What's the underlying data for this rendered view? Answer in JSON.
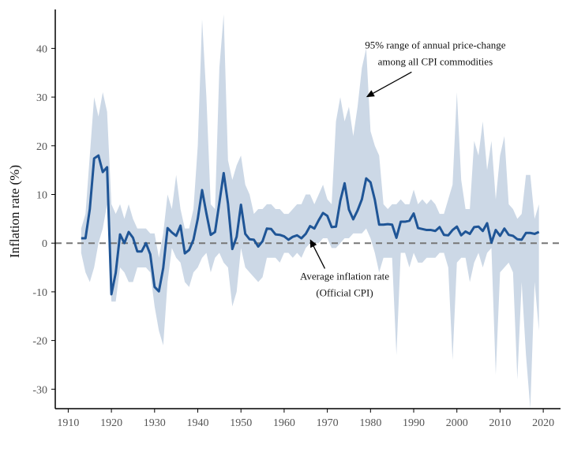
{
  "chart_data": {
    "type": "area",
    "ylabel": "Inflation rate (%)",
    "xlabel": "",
    "xlim": [
      1907,
      2024
    ],
    "ylim": [
      -34,
      48
    ],
    "xticks": [
      1910,
      1920,
      1930,
      1940,
      1950,
      1960,
      1970,
      1980,
      1990,
      2000,
      2010,
      2020
    ],
    "yticks": [
      -30,
      -20,
      -10,
      0,
      10,
      20,
      30,
      40
    ],
    "reference_line": {
      "y": 0,
      "style": "dashed"
    },
    "colors": {
      "line": "#1f5596",
      "band": "#ccd8e6",
      "zero": "#777777",
      "axis": "#000000"
    },
    "annotations": [
      {
        "lines": [
          "95% range of annual price-change",
          "among all CPI commodities"
        ],
        "target": {
          "x": 1979,
          "y": 30
        },
        "text_anchor": {
          "x": 1995,
          "y": 40
        }
      },
      {
        "lines": [
          "Average inflation rate",
          "(Official CPI)"
        ],
        "target": {
          "x": 1966,
          "y": 0.8
        },
        "text_anchor": {
          "x": 1974,
          "y": -7.5
        }
      }
    ],
    "series": [
      {
        "name": "Average inflation rate (Official CPI)",
        "x": [
          1913,
          1914,
          1915,
          1916,
          1917,
          1918,
          1919,
          1920,
          1921,
          1922,
          1923,
          1924,
          1925,
          1926,
          1927,
          1928,
          1929,
          1930,
          1931,
          1932,
          1933,
          1934,
          1935,
          1936,
          1937,
          1938,
          1939,
          1940,
          1941,
          1942,
          1943,
          1944,
          1945,
          1946,
          1947,
          1948,
          1949,
          1950,
          1951,
          1952,
          1953,
          1954,
          1955,
          1956,
          1957,
          1958,
          1959,
          1960,
          1961,
          1962,
          1963,
          1964,
          1965,
          1966,
          1967,
          1968,
          1969,
          1970,
          1971,
          1972,
          1973,
          1974,
          1975,
          1976,
          1977,
          1978,
          1979,
          1980,
          1981,
          1982,
          1983,
          1984,
          1985,
          1986,
          1987,
          1988,
          1989,
          1990,
          1991,
          1992,
          1993,
          1994,
          1995,
          1996,
          1997,
          1998,
          1999,
          2000,
          2001,
          2002,
          2003,
          2004,
          2005,
          2006,
          2007,
          2008,
          2009,
          2010,
          2011,
          2012,
          2013,
          2014,
          2015,
          2016,
          2017,
          2018,
          2019
        ],
        "y": [
          1.0,
          1.0,
          7.0,
          17.4,
          18.0,
          14.6,
          15.6,
          -10.5,
          -6.1,
          1.8,
          0.0,
          2.3,
          1.1,
          -1.7,
          -1.7,
          0.0,
          -2.3,
          -9.0,
          -9.9,
          -5.1,
          3.1,
          2.2,
          1.5,
          3.6,
          -2.1,
          -1.4,
          0.7,
          5.0,
          10.9,
          6.1,
          1.7,
          2.3,
          8.3,
          14.4,
          8.1,
          -1.2,
          1.3,
          7.9,
          1.9,
          0.8,
          0.7,
          -0.7,
          0.4,
          3.0,
          2.9,
          1.8,
          1.7,
          1.4,
          0.7,
          1.3,
          1.6,
          1.0,
          1.9,
          3.5,
          3.0,
          4.7,
          6.2,
          5.6,
          3.3,
          3.4,
          8.7,
          12.3,
          6.9,
          4.9,
          6.7,
          9.0,
          13.3,
          12.5,
          8.9,
          3.8,
          3.8,
          3.9,
          3.8,
          1.1,
          4.4,
          4.4,
          4.6,
          6.1,
          3.1,
          2.9,
          2.7,
          2.7,
          2.5,
          3.3,
          1.7,
          1.6,
          2.7,
          3.4,
          1.6,
          2.4,
          1.9,
          3.3,
          3.4,
          2.5,
          4.1,
          0.1,
          2.7,
          1.5,
          3.0,
          1.7,
          1.5,
          0.8,
          0.7,
          2.1,
          2.1,
          1.9,
          2.3
        ],
        "color": "#1f5596"
      }
    ],
    "band": {
      "name": "95% range of annual price-change among all CPI commodities",
      "x": [
        1913,
        1914,
        1915,
        1916,
        1917,
        1918,
        1919,
        1920,
        1921,
        1922,
        1923,
        1924,
        1925,
        1926,
        1927,
        1928,
        1929,
        1930,
        1931,
        1932,
        1933,
        1934,
        1935,
        1936,
        1937,
        1938,
        1939,
        1940,
        1941,
        1942,
        1943,
        1944,
        1945,
        1946,
        1947,
        1948,
        1949,
        1950,
        1951,
        1952,
        1953,
        1954,
        1955,
        1956,
        1957,
        1958,
        1959,
        1960,
        1961,
        1962,
        1963,
        1964,
        1965,
        1966,
        1967,
        1968,
        1969,
        1970,
        1971,
        1972,
        1973,
        1974,
        1975,
        1976,
        1977,
        1978,
        1979,
        1980,
        1981,
        1982,
        1983,
        1984,
        1985,
        1986,
        1987,
        1988,
        1989,
        1990,
        1991,
        1992,
        1993,
        1994,
        1995,
        1996,
        1997,
        1998,
        1999,
        2000,
        2001,
        2002,
        2003,
        2004,
        2005,
        2006,
        2007,
        2008,
        2009,
        2010,
        2011,
        2012,
        2013,
        2014,
        2015,
        2016,
        2017,
        2018,
        2019
      ],
      "upper": [
        3,
        6,
        18,
        30,
        26,
        31,
        27,
        8,
        6,
        8,
        5,
        8,
        5,
        3,
        3,
        3,
        2,
        2,
        -3,
        2,
        10,
        7,
        14,
        7,
        3,
        3,
        7,
        20,
        46,
        30,
        8,
        7,
        36,
        47,
        17,
        13,
        16,
        18,
        12,
        10,
        6,
        7,
        7,
        8,
        8,
        7,
        7,
        6,
        6,
        7,
        8,
        8,
        10,
        10,
        8,
        10,
        12,
        9,
        8,
        25,
        30,
        25,
        28,
        22,
        28,
        36,
        40,
        23,
        20,
        18,
        8,
        7,
        8,
        8,
        9,
        8,
        8,
        11,
        8,
        9,
        8,
        9,
        8,
        6,
        6,
        9,
        12,
        31,
        13,
        7,
        7,
        21,
        18,
        25,
        15,
        21,
        9,
        18,
        22,
        8,
        7,
        5,
        6,
        14,
        14,
        5,
        8
      ],
      "lower": [
        -2,
        -6,
        -8,
        -5,
        0,
        3,
        8,
        -12,
        -12,
        -5,
        -6,
        -8,
        -8,
        -5,
        -5,
        -5,
        -6,
        -13,
        -18,
        -21,
        -8,
        -1,
        -3,
        -4,
        -8,
        -9,
        -6,
        -5,
        -3,
        -2,
        -6,
        -3,
        -2,
        -4,
        -5,
        -13,
        -10,
        -1,
        -5,
        -6,
        -7,
        -8,
        -7,
        -3,
        -3,
        -3,
        -4,
        -2,
        -2,
        -3,
        -2,
        -3,
        -1,
        0,
        0,
        0,
        1,
        1,
        -1,
        -1,
        0,
        1,
        1,
        2,
        2,
        2,
        3,
        1,
        -2,
        -6,
        -3,
        -3,
        -3,
        -23,
        -2,
        -2,
        -5,
        -2,
        -4,
        -4,
        -3,
        -3,
        -3,
        -2,
        -2,
        -5,
        -24,
        -4,
        -3,
        -3,
        -8,
        -4,
        -2,
        -5,
        -2,
        -1,
        -27,
        -6,
        -5,
        -4,
        -6,
        -28,
        -8,
        -23,
        -34,
        -8,
        -18
      ],
      "color": "#ccd8e6"
    }
  }
}
